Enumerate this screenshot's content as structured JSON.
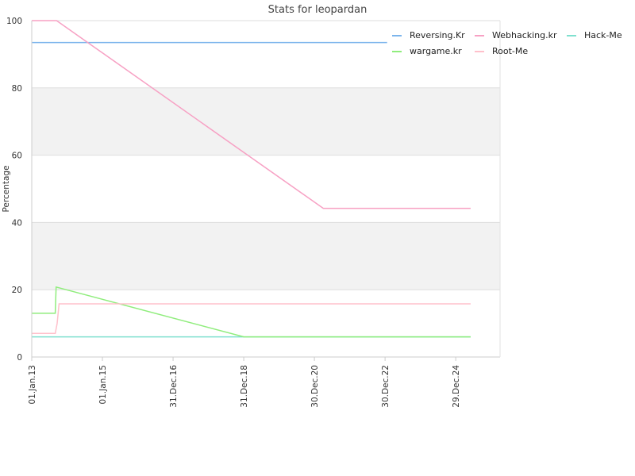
{
  "chart_data": {
    "type": "line",
    "title": "Stats for leopardan",
    "xlabel": "",
    "ylabel": "Percentage",
    "ylim": [
      0,
      100
    ],
    "yticks": [
      0,
      20,
      40,
      60,
      80,
      100
    ],
    "xlim": [
      "2013-01-01",
      "2026-04-01"
    ],
    "xticks": [
      {
        "date": "2013-01-01",
        "label": "01.Jan.13"
      },
      {
        "date": "2015-01-01",
        "label": "01.Jan.15"
      },
      {
        "date": "2016-12-31",
        "label": "31.Dec.16"
      },
      {
        "date": "2018-12-31",
        "label": "31.Dec.18"
      },
      {
        "date": "2020-12-30",
        "label": "30.Dec.20"
      },
      {
        "date": "2022-12-30",
        "label": "30.Dec.22"
      },
      {
        "date": "2024-12-29",
        "label": "29.Dec.24"
      }
    ],
    "grid": "alternating horizontal bands",
    "legend_position": "top-right",
    "series": [
      {
        "name": "Reversing.Kr",
        "color": "#7cb5ec",
        "points": [
          [
            "2013-01-01",
            93.5
          ],
          [
            "2023-01-20",
            93.5
          ]
        ]
      },
      {
        "name": "Webhacking.kr",
        "color": "#f7a1c4",
        "points": [
          [
            "2013-01-01",
            100
          ],
          [
            "2013-09-15",
            100
          ],
          [
            "2021-04-01",
            44.2
          ],
          [
            "2025-06-01",
            44.2
          ]
        ]
      },
      {
        "name": "Hack-Me",
        "color": "#7fe0cf",
        "points": [
          [
            "2013-01-01",
            6
          ],
          [
            "2025-06-01",
            6
          ]
        ]
      },
      {
        "name": "wargame.kr",
        "color": "#90ed7d",
        "points": [
          [
            "2013-01-01",
            13
          ],
          [
            "2013-09-01",
            13
          ],
          [
            "2013-09-10",
            20.8
          ],
          [
            "2019-01-01",
            6
          ],
          [
            "2025-06-01",
            6
          ]
        ]
      },
      {
        "name": "Root-Me",
        "color": "#ffc0cb",
        "points": [
          [
            "2013-01-01",
            7
          ],
          [
            "2013-09-01",
            7
          ],
          [
            "2013-09-20",
            10
          ],
          [
            "2013-10-10",
            15.8
          ],
          [
            "2025-06-01",
            15.8
          ]
        ]
      }
    ]
  }
}
